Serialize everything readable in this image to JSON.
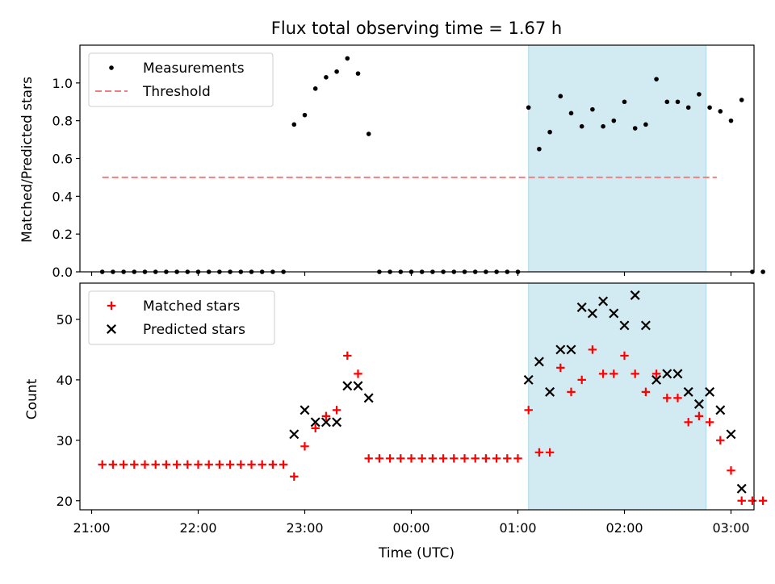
{
  "chart_data": [
    {
      "type": "scatter",
      "title": "Flux total observing time = 1.67 h",
      "ylabel": "Matched/Predicted stars",
      "xlabel": "",
      "x_unit": "time (UTC)",
      "xlim": [
        "21:00",
        "03:00"
      ],
      "ylim": [
        0,
        1.2
      ],
      "yticks": [
        0.0,
        0.2,
        0.4,
        0.6,
        0.8,
        1.0
      ],
      "ytick_labels": [
        "0.0",
        "0.2",
        "0.4",
        "0.6",
        "0.8",
        "1.0"
      ],
      "grid": false,
      "legend_position": "top-left",
      "shaded_span": {
        "from": "01:06",
        "to": "02:46",
        "color": "#add8e6"
      },
      "series": [
        {
          "name": "Measurements",
          "marker": "dot",
          "color": "#000000",
          "points": [
            [
              "21:06",
              0
            ],
            [
              "21:12",
              0
            ],
            [
              "21:18",
              0
            ],
            [
              "21:24",
              0
            ],
            [
              "21:30",
              0
            ],
            [
              "21:36",
              0
            ],
            [
              "21:42",
              0
            ],
            [
              "21:48",
              0
            ],
            [
              "21:54",
              0
            ],
            [
              "22:00",
              0
            ],
            [
              "22:06",
              0
            ],
            [
              "22:12",
              0
            ],
            [
              "22:18",
              0
            ],
            [
              "22:24",
              0
            ],
            [
              "22:30",
              0
            ],
            [
              "22:36",
              0
            ],
            [
              "22:42",
              0
            ],
            [
              "22:48",
              0
            ],
            [
              "22:54",
              0.78
            ],
            [
              "23:00",
              0.83
            ],
            [
              "23:06",
              0.97
            ],
            [
              "23:12",
              1.03
            ],
            [
              "23:18",
              1.06
            ],
            [
              "23:24",
              1.13
            ],
            [
              "23:30",
              1.05
            ],
            [
              "23:36",
              0.73
            ],
            [
              "23:42",
              0
            ],
            [
              "23:48",
              0
            ],
            [
              "23:54",
              0
            ],
            [
              "00:00",
              0
            ],
            [
              "00:06",
              0
            ],
            [
              "00:12",
              0
            ],
            [
              "00:18",
              0
            ],
            [
              "00:24",
              0
            ],
            [
              "00:30",
              0
            ],
            [
              "00:36",
              0
            ],
            [
              "00:42",
              0
            ],
            [
              "00:48",
              0
            ],
            [
              "00:54",
              0
            ],
            [
              "01:00",
              0
            ],
            [
              "01:06",
              0.87
            ],
            [
              "01:12",
              0.65
            ],
            [
              "01:18",
              0.74
            ],
            [
              "01:24",
              0.93
            ],
            [
              "01:30",
              0.84
            ],
            [
              "01:36",
              0.77
            ],
            [
              "01:42",
              0.86
            ],
            [
              "01:48",
              0.77
            ],
            [
              "01:54",
              0.8
            ],
            [
              "02:00",
              0.9
            ],
            [
              "02:06",
              0.76
            ],
            [
              "02:12",
              0.78
            ],
            [
              "02:18",
              1.02
            ],
            [
              "02:24",
              0.9
            ],
            [
              "02:30",
              0.9
            ],
            [
              "02:36",
              0.87
            ],
            [
              "02:42",
              0.94
            ],
            [
              "02:48",
              0.87
            ],
            [
              "02:54",
              0.85
            ],
            [
              "03:00",
              0.8
            ],
            [
              "03:06",
              0.91
            ],
            [
              "03:12",
              0
            ],
            [
              "03:18",
              0
            ]
          ]
        },
        {
          "name": "Threshold",
          "style": "dashed",
          "color": "#f08080",
          "points": [
            [
              "21:06",
              0.5
            ],
            [
              "02:52",
              0.5
            ]
          ]
        }
      ]
    },
    {
      "type": "scatter",
      "title": "",
      "ylabel": "Count",
      "xlabel": "Time (UTC)",
      "x_unit": "time (UTC)",
      "xlim": [
        "21:00",
        "03:00"
      ],
      "ylim": [
        18.5,
        56
      ],
      "yticks": [
        20,
        30,
        40,
        50
      ],
      "ytick_labels": [
        "20",
        "30",
        "40",
        "50"
      ],
      "xticks": [
        "21:00",
        "22:00",
        "23:00",
        "00:00",
        "01:00",
        "02:00",
        "03:00"
      ],
      "xtick_labels": [
        "21:00",
        "22:00",
        "23:00",
        "00:00",
        "01:00",
        "02:00",
        "03:00"
      ],
      "grid": false,
      "legend_position": "top-left",
      "shaded_span": {
        "from": "01:06",
        "to": "02:46",
        "color": "#add8e6"
      },
      "series": [
        {
          "name": "Matched stars",
          "marker": "plus",
          "color": "#ff0000",
          "points": [
            [
              "21:06",
              26
            ],
            [
              "21:12",
              26
            ],
            [
              "21:18",
              26
            ],
            [
              "21:24",
              26
            ],
            [
              "21:30",
              26
            ],
            [
              "21:36",
              26
            ],
            [
              "21:42",
              26
            ],
            [
              "21:48",
              26
            ],
            [
              "21:54",
              26
            ],
            [
              "22:00",
              26
            ],
            [
              "22:06",
              26
            ],
            [
              "22:12",
              26
            ],
            [
              "22:18",
              26
            ],
            [
              "22:24",
              26
            ],
            [
              "22:30",
              26
            ],
            [
              "22:36",
              26
            ],
            [
              "22:42",
              26
            ],
            [
              "22:48",
              26
            ],
            [
              "22:54",
              24
            ],
            [
              "23:00",
              29
            ],
            [
              "23:06",
              32
            ],
            [
              "23:12",
              34
            ],
            [
              "23:18",
              35
            ],
            [
              "23:24",
              44
            ],
            [
              "23:30",
              41
            ],
            [
              "23:36",
              27
            ],
            [
              "23:42",
              27
            ],
            [
              "23:48",
              27
            ],
            [
              "23:54",
              27
            ],
            [
              "00:00",
              27
            ],
            [
              "00:06",
              27
            ],
            [
              "00:12",
              27
            ],
            [
              "00:18",
              27
            ],
            [
              "00:24",
              27
            ],
            [
              "00:30",
              27
            ],
            [
              "00:36",
              27
            ],
            [
              "00:42",
              27
            ],
            [
              "00:48",
              27
            ],
            [
              "00:54",
              27
            ],
            [
              "01:00",
              27
            ],
            [
              "01:06",
              35
            ],
            [
              "01:12",
              28
            ],
            [
              "01:18",
              28
            ],
            [
              "01:24",
              42
            ],
            [
              "01:30",
              38
            ],
            [
              "01:36",
              40
            ],
            [
              "01:42",
              45
            ],
            [
              "01:48",
              41
            ],
            [
              "01:54",
              41
            ],
            [
              "02:00",
              44
            ],
            [
              "02:06",
              41
            ],
            [
              "02:12",
              38
            ],
            [
              "02:18",
              41
            ],
            [
              "02:24",
              37
            ],
            [
              "02:30",
              37
            ],
            [
              "02:36",
              33
            ],
            [
              "02:42",
              34
            ],
            [
              "02:48",
              33
            ],
            [
              "02:54",
              30
            ],
            [
              "03:00",
              25
            ],
            [
              "03:06",
              20
            ],
            [
              "03:12",
              20
            ],
            [
              "03:18",
              20
            ]
          ]
        },
        {
          "name": "Predicted stars",
          "marker": "x",
          "color": "#000000",
          "points": [
            [
              "22:54",
              31
            ],
            [
              "23:00",
              35
            ],
            [
              "23:06",
              33
            ],
            [
              "23:12",
              33
            ],
            [
              "23:18",
              33
            ],
            [
              "23:24",
              39
            ],
            [
              "23:30",
              39
            ],
            [
              "23:36",
              37
            ],
            [
              "01:06",
              40
            ],
            [
              "01:12",
              43
            ],
            [
              "01:18",
              38
            ],
            [
              "01:24",
              45
            ],
            [
              "01:30",
              45
            ],
            [
              "01:36",
              52
            ],
            [
              "01:42",
              51
            ],
            [
              "01:48",
              53
            ],
            [
              "01:54",
              51
            ],
            [
              "02:00",
              49
            ],
            [
              "02:06",
              54
            ],
            [
              "02:12",
              49
            ],
            [
              "02:18",
              40
            ],
            [
              "02:24",
              41
            ],
            [
              "02:30",
              41
            ],
            [
              "02:36",
              38
            ],
            [
              "02:42",
              36
            ],
            [
              "02:48",
              38
            ],
            [
              "02:54",
              35
            ],
            [
              "03:00",
              31
            ],
            [
              "03:06",
              22
            ]
          ]
        }
      ]
    }
  ]
}
